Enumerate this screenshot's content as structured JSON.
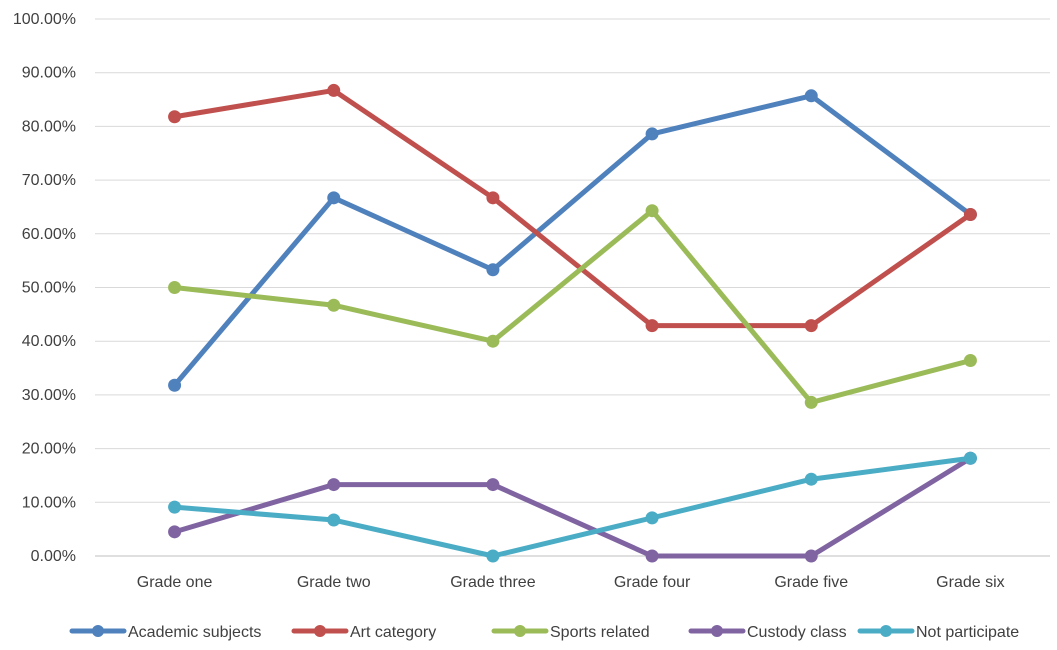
{
  "chart_data": {
    "type": "line",
    "title": "",
    "xlabel": "",
    "ylabel": "",
    "categories": [
      "Grade one",
      "Grade two",
      "Grade three",
      "Grade four",
      "Grade five",
      "Grade six"
    ],
    "ylim": [
      0,
      100
    ],
    "y_ticks": [
      "0.00%",
      "10.00%",
      "20.00%",
      "30.00%",
      "40.00%",
      "50.00%",
      "60.00%",
      "70.00%",
      "80.00%",
      "90.00%",
      "100.00%"
    ],
    "grid": true,
    "legend_position": "bottom",
    "series": [
      {
        "name": "Academic subjects",
        "color": "#4F81BD",
        "values": [
          31.8,
          66.7,
          53.3,
          78.6,
          85.7,
          63.6
        ]
      },
      {
        "name": "Art category",
        "color": "#C0504D",
        "values": [
          81.8,
          86.7,
          66.7,
          42.9,
          42.9,
          63.6
        ]
      },
      {
        "name": "Sports related",
        "color": "#9BBB59",
        "values": [
          50.0,
          46.7,
          40.0,
          64.3,
          28.6,
          36.4
        ]
      },
      {
        "name": "Custody class",
        "color": "#8064A2",
        "values": [
          4.5,
          13.3,
          13.3,
          0.0,
          0.0,
          18.2
        ]
      },
      {
        "name": "Not participate",
        "color": "#4BACC6",
        "values": [
          9.1,
          6.7,
          0.0,
          7.1,
          14.3,
          18.2
        ]
      }
    ]
  }
}
